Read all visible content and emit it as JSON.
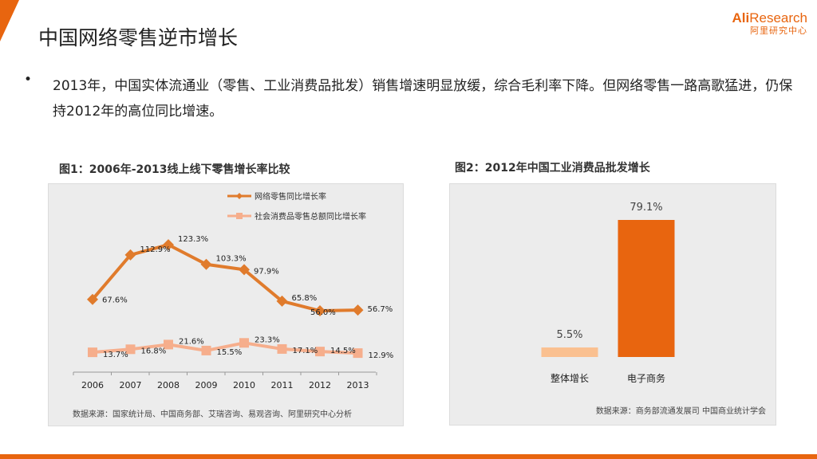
{
  "header": {
    "title": "中国网络零售逆市增长",
    "logo_brand": "Ali",
    "logo_brand_rest": "Research",
    "logo_subtitle": "阿里研究中心"
  },
  "bullet": {
    "symbol": "•",
    "text": "2013年，中国实体流通业（零售、工业消费品批发）销售增速明显放缓，综合毛利率下降。但网络零售一路高歌猛进，仍保持2012年的高位同比增速。"
  },
  "chart_data": [
    {
      "type": "line",
      "title": "图1：2006年-2013线上线下零售增长率比较",
      "categories": [
        "2006",
        "2007",
        "2008",
        "2009",
        "2010",
        "2011",
        "2012",
        "2013"
      ],
      "series": [
        {
          "name": "网络零售同比增长率",
          "values": [
            67.6,
            112.9,
            123.3,
            103.3,
            97.9,
            65.8,
            56.0,
            56.7
          ],
          "labels": [
            "67.6%",
            "112.9%",
            "123.3%",
            "103.3%",
            "97.9%",
            "65.8%",
            "56.0%",
            "56.7%"
          ],
          "color": "#e07b2c",
          "marker": "diamond"
        },
        {
          "name": "社会消费品零售总额同比增长率",
          "values": [
            13.7,
            16.8,
            21.6,
            15.5,
            23.3,
            17.1,
            14.5,
            12.9
          ],
          "labels": [
            "13.7%",
            "16.8%",
            "21.6%",
            "15.5%",
            "23.3%",
            "17.1%",
            "14.5%",
            "12.9%"
          ],
          "color": "#f6ae8c",
          "marker": "square"
        }
      ],
      "ylim": [
        0,
        140
      ],
      "grid": false,
      "legend": "top-center",
      "source": "数据来源：国家统计局、中国商务部、艾瑞咨询、易观咨询、阿里研究中心分析"
    },
    {
      "type": "bar",
      "title": "图2：2012年中国工业消费品批发增长",
      "categories": [
        "整体增长",
        "电子商务"
      ],
      "values": [
        5.5,
        79.1
      ],
      "labels": [
        "5.5%",
        "79.1%"
      ],
      "colors": [
        "#fac090",
        "#e8650f"
      ],
      "ylim": [
        0,
        90
      ],
      "grid": false,
      "source": "数据来源：商务部流通发展司 中国商业统计学会"
    }
  ]
}
